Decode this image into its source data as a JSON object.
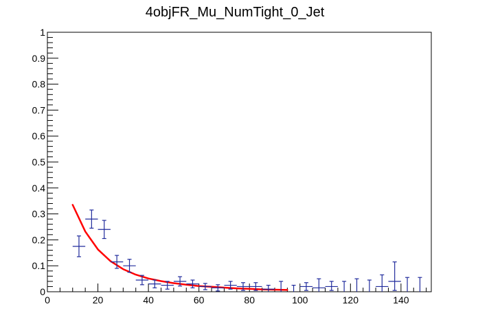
{
  "chart_data": {
    "type": "scatter",
    "title": "4objFR_Mu_NumTight_0_Jet",
    "xlabel": "",
    "ylabel": "",
    "xlim": [
      0,
      152
    ],
    "ylim": [
      0,
      1
    ],
    "x_ticks": [
      0,
      20,
      40,
      60,
      80,
      100,
      120,
      140
    ],
    "y_ticks": [
      0,
      0.1,
      0.2,
      0.3,
      0.4,
      0.5,
      0.6,
      0.7,
      0.8,
      0.9,
      1
    ],
    "x_tick_labels": [
      "0",
      "20",
      "40",
      "60",
      "80",
      "100",
      "120",
      "140"
    ],
    "y_tick_labels": [
      "0",
      "0.1",
      "0.2",
      "0.3",
      "0.4",
      "0.5",
      "0.6",
      "0.7",
      "0.8",
      "0.9",
      "1"
    ],
    "grid": false,
    "legend": "none",
    "series": [
      {
        "kind": "errorbar_points",
        "color": "#1f2a9c",
        "points": [
          {
            "x": 12.5,
            "y": 0.175,
            "xerr": 2.5,
            "ylo": 0.04,
            "yhi": 0.04
          },
          {
            "x": 17.5,
            "y": 0.28,
            "xerr": 2.5,
            "ylo": 0.035,
            "yhi": 0.035
          },
          {
            "x": 22.5,
            "y": 0.24,
            "xerr": 2.5,
            "ylo": 0.035,
            "yhi": 0.035
          },
          {
            "x": 27.5,
            "y": 0.115,
            "xerr": 2.5,
            "ylo": 0.025,
            "yhi": 0.025
          },
          {
            "x": 32.5,
            "y": 0.1,
            "xerr": 2.5,
            "ylo": 0.025,
            "yhi": 0.025
          },
          {
            "x": 37.5,
            "y": 0.045,
            "xerr": 2.5,
            "ylo": 0.018,
            "yhi": 0.018
          },
          {
            "x": 42.5,
            "y": 0.03,
            "xerr": 2.5,
            "ylo": 0.015,
            "yhi": 0.015
          },
          {
            "x": 47.5,
            "y": 0.025,
            "xerr": 2.5,
            "ylo": 0.015,
            "yhi": 0.015
          },
          {
            "x": 52.5,
            "y": 0.04,
            "xerr": 2.5,
            "ylo": 0.018,
            "yhi": 0.018
          },
          {
            "x": 57.5,
            "y": 0.03,
            "xerr": 2.5,
            "ylo": 0.015,
            "yhi": 0.015
          },
          {
            "x": 62.5,
            "y": 0.02,
            "xerr": 2.5,
            "ylo": 0.012,
            "yhi": 0.012
          },
          {
            "x": 67.5,
            "y": 0.015,
            "xerr": 2.5,
            "ylo": 0.012,
            "yhi": 0.012
          },
          {
            "x": 72.5,
            "y": 0.025,
            "xerr": 2.5,
            "ylo": 0.015,
            "yhi": 0.015
          },
          {
            "x": 77.5,
            "y": 0.02,
            "xerr": 2.5,
            "ylo": 0.015,
            "yhi": 0.015
          },
          {
            "x": 82.5,
            "y": 0.02,
            "xerr": 2.5,
            "ylo": 0.015,
            "yhi": 0.015
          },
          {
            "x": 87.5,
            "y": 0.01,
            "xerr": 2.5,
            "ylo": 0.01,
            "yhi": 0.015
          },
          {
            "x": 92.5,
            "y": 0.0,
            "xerr": 0,
            "ylo": 0.0,
            "yhi": 0.04
          },
          {
            "x": 97.5,
            "y": 0.0,
            "xerr": 0,
            "ylo": 0.0,
            "yhi": 0.025
          },
          {
            "x": 102.5,
            "y": 0.02,
            "xerr": 2.5,
            "ylo": 0.015,
            "yhi": 0.015
          },
          {
            "x": 107.5,
            "y": 0.015,
            "xerr": 2.5,
            "ylo": 0.015,
            "yhi": 0.035
          },
          {
            "x": 112.5,
            "y": 0.02,
            "xerr": 2.5,
            "ylo": 0.015,
            "yhi": 0.02
          },
          {
            "x": 117.5,
            "y": 0.0,
            "xerr": 0,
            "ylo": 0.0,
            "yhi": 0.04
          },
          {
            "x": 122.5,
            "y": 0.0,
            "xerr": 0,
            "ylo": 0.0,
            "yhi": 0.05
          },
          {
            "x": 127.5,
            "y": 0.0,
            "xerr": 0,
            "ylo": 0.0,
            "yhi": 0.045
          },
          {
            "x": 132.5,
            "y": 0.02,
            "xerr": 2.5,
            "ylo": 0.02,
            "yhi": 0.045
          },
          {
            "x": 137.5,
            "y": 0.04,
            "xerr": 2.5,
            "ylo": 0.035,
            "yhi": 0.075
          },
          {
            "x": 142.5,
            "y": 0.0,
            "xerr": 0,
            "ylo": 0.0,
            "yhi": 0.055
          },
          {
            "x": 147.5,
            "y": 0.0,
            "xerr": 0,
            "ylo": 0.0,
            "yhi": 0.055
          }
        ]
      },
      {
        "kind": "fit_line",
        "color": "#ff0000",
        "x": [
          10,
          15,
          20,
          25,
          30,
          35,
          40,
          45,
          50,
          55,
          60,
          65,
          70,
          75,
          80,
          85,
          90,
          95
        ],
        "y": [
          0.335,
          0.232,
          0.163,
          0.118,
          0.087,
          0.066,
          0.051,
          0.041,
          0.033,
          0.027,
          0.022,
          0.019,
          0.016,
          0.013,
          0.011,
          0.009,
          0.008,
          0.007
        ]
      }
    ]
  }
}
